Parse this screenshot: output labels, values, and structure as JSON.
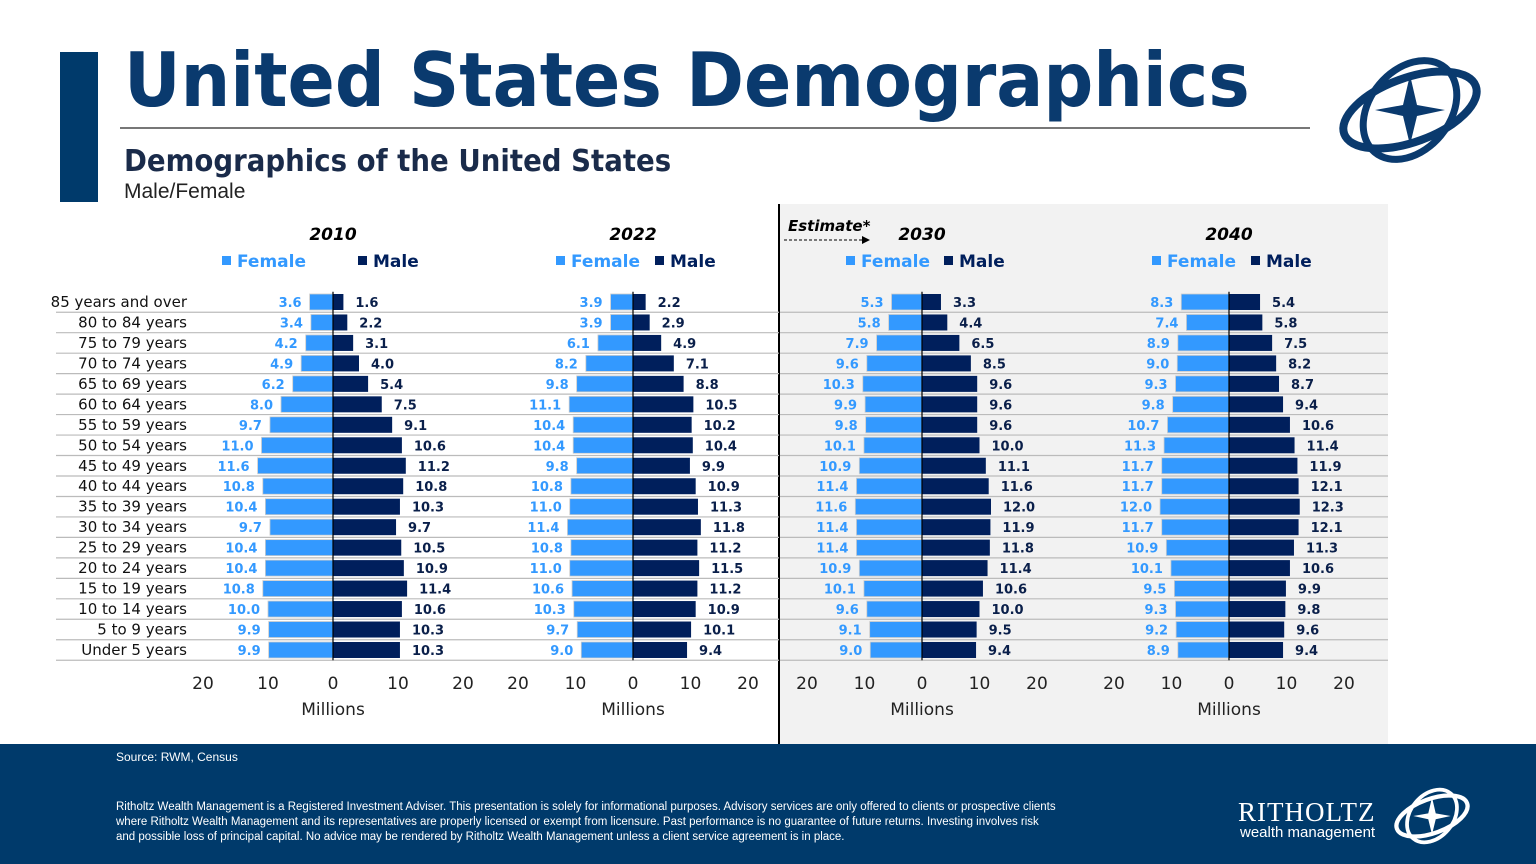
{
  "header": {
    "title": "United States Demographics",
    "subtitle": "Demographics of the United States",
    "subsubtitle": "Male/Female"
  },
  "estimate_label": "Estimate*",
  "colors": {
    "female": "#3399ff",
    "male": "#001f5c",
    "brand": "#003a6b"
  },
  "chart_data": [
    {
      "type": "bar",
      "title": "2010",
      "xlabel": "Millions",
      "xlim": [
        -20,
        20
      ],
      "ticks": [
        "20",
        "10",
        "0",
        "10",
        "20"
      ],
      "categories": [
        "85 years and over",
        "80 to 84 years",
        "75 to 79 years",
        "70 to 74 years",
        "65 to 69 years",
        "60 to 64 years",
        "55 to 59 years",
        "50 to 54 years",
        "45 to 49 years",
        "40 to 44 years",
        "35 to 39 years",
        "30 to 34 years",
        "25 to 29 years",
        "20 to 24 years",
        "15 to 19 years",
        "10 to 14 years",
        "5 to 9 years",
        "Under 5 years"
      ],
      "series": [
        {
          "name": "Female",
          "values": [
            3.6,
            3.4,
            4.2,
            4.9,
            6.2,
            8.0,
            9.7,
            11.0,
            11.6,
            10.8,
            10.4,
            9.7,
            10.4,
            10.4,
            10.8,
            10.0,
            9.9,
            9.9
          ]
        },
        {
          "name": "Male",
          "values": [
            1.6,
            2.2,
            3.1,
            4.0,
            5.4,
            7.5,
            9.1,
            10.6,
            11.2,
            10.8,
            10.3,
            9.7,
            10.5,
            10.9,
            11.4,
            10.6,
            10.3,
            10.3
          ]
        }
      ],
      "legend": "top"
    },
    {
      "type": "bar",
      "title": "2022",
      "xlabel": "Millions",
      "xlim": [
        -20,
        20
      ],
      "ticks": [
        "20",
        "10",
        "0",
        "10",
        "20"
      ],
      "series": [
        {
          "name": "Female",
          "values": [
            3.9,
            3.9,
            6.1,
            8.2,
            9.8,
            11.1,
            10.4,
            10.4,
            9.8,
            10.8,
            11.0,
            11.4,
            10.8,
            11.0,
            10.6,
            10.3,
            9.7,
            9.0
          ]
        },
        {
          "name": "Male",
          "values": [
            2.2,
            2.9,
            4.9,
            7.1,
            8.8,
            10.5,
            10.2,
            10.4,
            9.9,
            10.9,
            11.3,
            11.8,
            11.2,
            11.5,
            11.2,
            10.9,
            10.1,
            9.4
          ]
        }
      ],
      "legend": "top"
    },
    {
      "type": "bar",
      "title": "2030",
      "xlabel": "Millions",
      "xlim": [
        -20,
        20
      ],
      "ticks": [
        "20",
        "10",
        "0",
        "10",
        "20"
      ],
      "series": [
        {
          "name": "Female",
          "values": [
            5.3,
            5.8,
            7.9,
            9.6,
            10.3,
            9.9,
            9.8,
            10.1,
            10.9,
            11.4,
            11.6,
            11.4,
            11.4,
            10.9,
            10.1,
            9.6,
            9.1,
            9.0
          ]
        },
        {
          "name": "Male",
          "values": [
            3.3,
            4.4,
            6.5,
            8.5,
            9.6,
            9.6,
            9.6,
            10.0,
            11.1,
            11.6,
            12.0,
            11.9,
            11.8,
            11.4,
            10.6,
            10.0,
            9.5,
            9.4
          ]
        }
      ],
      "legend": "top"
    },
    {
      "type": "bar",
      "title": "2040",
      "xlabel": "Millions",
      "xlim": [
        -20,
        20
      ],
      "ticks": [
        "20",
        "10",
        "0",
        "10",
        "20"
      ],
      "series": [
        {
          "name": "Female",
          "values": [
            8.3,
            7.4,
            8.9,
            9.0,
            9.3,
            9.8,
            10.7,
            11.3,
            11.7,
            11.7,
            12.0,
            11.7,
            10.9,
            10.1,
            9.5,
            9.3,
            9.2,
            8.9
          ]
        },
        {
          "name": "Male",
          "values": [
            5.4,
            5.8,
            7.5,
            8.2,
            8.7,
            9.4,
            10.6,
            11.4,
            11.9,
            12.1,
            12.3,
            12.1,
            11.3,
            10.6,
            9.9,
            9.8,
            9.6,
            9.4
          ]
        }
      ],
      "legend": "top"
    }
  ],
  "footer": {
    "source": "Source: RWM, Census",
    "disclaimer": "Ritholtz Wealth Management is a Registered Investment Adviser. This presentation is solely for informational purposes. Advisory services are only offered to clients or prospective clients where Ritholtz Wealth Management and its representatives are properly licensed or exempt from licensure. Past performance is no guarantee of future returns. Investing involves risk and possible loss of principal capital. No advice may be rendered by Ritholtz Wealth Management unless a client service agreement is in place.",
    "brand_name": "RITHOLTZ",
    "brand_tagline": "wealth management"
  }
}
